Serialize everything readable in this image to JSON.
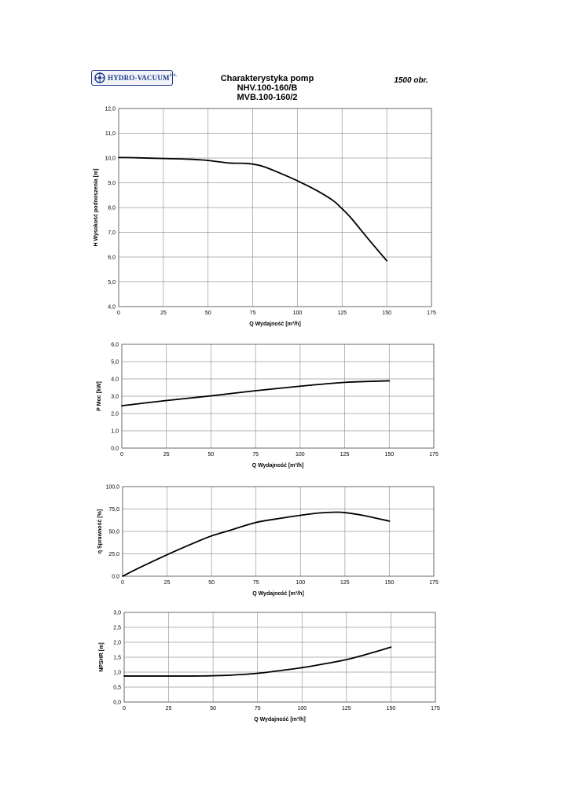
{
  "header": {
    "logo_text": "HYDRO-VACUUM",
    "logo_suffix": "S.A.",
    "title_lines": [
      "Charakterystyka pomp",
      "NHV.100-160/B",
      "MVB.100-160/2"
    ],
    "speed": "1500 obr."
  },
  "colors": {
    "logo": "#1e3a8a",
    "grid": "#9a9a9a",
    "curve": "#000000"
  },
  "chart_data": [
    {
      "type": "line",
      "xlabel": "Q Wydajność [m³/h]",
      "ylabel": "H Wysokość podnoszenia [m]",
      "xlim": [
        0,
        175
      ],
      "ylim": [
        4.0,
        12.0
      ],
      "xticks": [
        0,
        25,
        50,
        75,
        100,
        125,
        150,
        175
      ],
      "yticks": [
        4.0,
        5.0,
        6.0,
        7.0,
        8.0,
        9.0,
        10.0,
        11.0,
        12.0
      ],
      "ytick_labels": [
        "4,0",
        "5,0",
        "6,0",
        "7,0",
        "8,0",
        "9,0",
        "10,0",
        "11,0",
        "12,0"
      ],
      "grid": true,
      "series": [
        {
          "x": [
            0,
            10,
            25,
            40,
            50,
            60,
            65,
            72,
            80,
            90,
            100,
            110,
            120,
            125,
            130,
            140,
            150
          ],
          "y": [
            10.02,
            10.01,
            9.98,
            9.95,
            9.9,
            9.81,
            9.79,
            9.78,
            9.68,
            9.4,
            9.08,
            8.72,
            8.28,
            7.95,
            7.58,
            6.7,
            5.85
          ]
        }
      ]
    },
    {
      "type": "line",
      "xlabel": "Q Wydajność [m³/h]",
      "ylabel": "P  Moc [kW]",
      "xlim": [
        0,
        175
      ],
      "ylim": [
        0.0,
        6.0
      ],
      "xticks": [
        0,
        25,
        50,
        75,
        100,
        125,
        150,
        175
      ],
      "yticks": [
        0.0,
        1.0,
        2.0,
        3.0,
        4.0,
        5.0,
        6.0
      ],
      "ytick_labels": [
        "0,0",
        "1,0",
        "2,0",
        "3,0",
        "4,0",
        "5,0",
        "6,0"
      ],
      "grid": true,
      "series": [
        {
          "x": [
            0,
            25,
            50,
            75,
            100,
            125,
            140,
            150
          ],
          "y": [
            2.45,
            2.75,
            3.02,
            3.32,
            3.58,
            3.8,
            3.86,
            3.89
          ]
        }
      ]
    },
    {
      "type": "line",
      "xlabel": "Q Wydajność [m³/h]",
      "ylabel": "η Sprawność [%]",
      "xlim": [
        0,
        175
      ],
      "ylim": [
        0.0,
        100.0
      ],
      "xticks": [
        0,
        25,
        50,
        75,
        100,
        125,
        150,
        175
      ],
      "yticks": [
        0.0,
        25.0,
        50.0,
        75.0,
        100.0
      ],
      "ytick_labels": [
        "0,0",
        "25,0",
        "50,0",
        "75,0",
        "100,0"
      ],
      "grid": true,
      "series": [
        {
          "x": [
            0,
            10,
            25,
            40,
            50,
            60,
            75,
            90,
            100,
            110,
            120,
            125,
            135,
            150
          ],
          "y": [
            0,
            10,
            24,
            37,
            45,
            51,
            60,
            65,
            68,
            70.5,
            71.5,
            71,
            68,
            61.5
          ]
        }
      ]
    },
    {
      "type": "line",
      "xlabel": "Q Wydajność [m³/h]",
      "ylabel": "NPSHR [m]",
      "xlim": [
        0,
        175
      ],
      "ylim": [
        0.0,
        3.0
      ],
      "xticks": [
        0,
        25,
        50,
        75,
        100,
        125,
        150,
        175
      ],
      "yticks": [
        0.0,
        0.5,
        1.0,
        1.5,
        2.0,
        2.5,
        3.0
      ],
      "ytick_labels": [
        "0,0",
        "0,5",
        "1,0",
        "1,5",
        "2,0",
        "2,5",
        "3,0"
      ],
      "grid": true,
      "series": [
        {
          "x": [
            0,
            25,
            40,
            50,
            60,
            75,
            90,
            100,
            110,
            125,
            140,
            150
          ],
          "y": [
            0.87,
            0.87,
            0.87,
            0.88,
            0.9,
            0.96,
            1.07,
            1.15,
            1.25,
            1.42,
            1.66,
            1.84
          ]
        }
      ]
    }
  ]
}
